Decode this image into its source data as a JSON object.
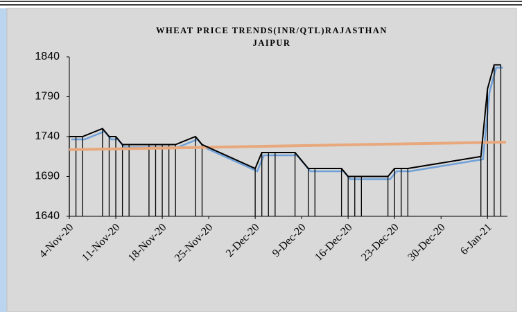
{
  "chart_data": {
    "type": "line",
    "title": [
      "WHEAT PRICE TRENDS(INR/QTL)RAJASTHAN",
      "JAIPUR"
    ],
    "x": [
      "4-Nov-20",
      "5-Nov-20",
      "6-Nov-20",
      "9-Nov-20",
      "10-Nov-20",
      "11-Nov-20",
      "12-Nov-20",
      "13-Nov-20",
      "16-Nov-20",
      "17-Nov-20",
      "18-Nov-20",
      "19-Nov-20",
      "20-Nov-20",
      "23-Nov-20",
      "24-Nov-20",
      "2-Dec-20",
      "3-Dec-20",
      "4-Dec-20",
      "5-Dec-20",
      "8-Dec-20",
      "10-Dec-20",
      "11-Dec-20",
      "15-Dec-20",
      "16-Dec-20",
      "17-Dec-20",
      "18-Dec-20",
      "22-Dec-20",
      "23-Dec-20",
      "24-Dec-20",
      "25-Dec-20",
      "5-Jan-21",
      "6-Jan-21",
      "7-Jan-21",
      "8-Jan-21"
    ],
    "series": [
      {
        "color": "#000000",
        "shadow_color": "#6fa0d8",
        "values": [
          1740,
          1740,
          1740,
          1750,
          1740,
          1740,
          1730,
          1730,
          1730,
          1730,
          1730,
          1730,
          1730,
          1740,
          1730,
          1700,
          1720,
          1720,
          1720,
          1720,
          1700,
          1700,
          1700,
          1690,
          1690,
          1690,
          1690,
          1700,
          1700,
          1700,
          1715,
          1800,
          1830,
          1830
        ]
      }
    ],
    "trendline_color": "#e8a87c",
    "xlim": [
      "4-Nov-20",
      "9-Jan-21"
    ],
    "xticks": [
      "4-Nov-20",
      "11-Nov-20",
      "18-Nov-20",
      "25-Nov-20",
      "2-Dec-20",
      "9-Dec-20",
      "16-Dec-20",
      "23-Dec-20",
      "30-Dec-20",
      "6-Jan-21"
    ],
    "ylim": [
      1640,
      1840
    ],
    "yticks": [
      1640,
      1690,
      1740,
      1790,
      1840
    ],
    "grid": false,
    "drop_lines": true
  }
}
